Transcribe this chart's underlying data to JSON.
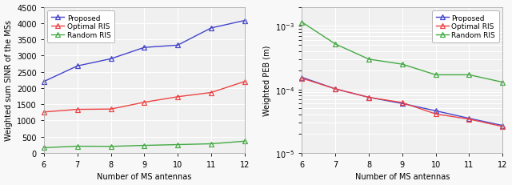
{
  "x": [
    6,
    7,
    8,
    9,
    10,
    11,
    12
  ],
  "left": {
    "proposed": [
      2200,
      2680,
      2900,
      3250,
      3320,
      3850,
      4080
    ],
    "optimal_ris": [
      1260,
      1340,
      1350,
      1560,
      1730,
      1860,
      2200
    ],
    "random_ris": [
      160,
      205,
      200,
      230,
      255,
      280,
      360
    ],
    "ylabel": "Weighted sum SINR of the MSs",
    "ylim": [
      0,
      4500
    ],
    "yticks": [
      0,
      500,
      1000,
      1500,
      2000,
      2500,
      3000,
      3500,
      4000,
      4500
    ]
  },
  "right": {
    "proposed": [
      0.000155,
      0.000102,
      7.5e-05,
      6e-05,
      4.6e-05,
      3.5e-05,
      2.7e-05
    ],
    "optimal_ris": [
      0.00015,
      0.000102,
      7.5e-05,
      6.2e-05,
      4.1e-05,
      3.4e-05,
      2.6e-05
    ],
    "random_ris": [
      0.00115,
      0.00052,
      0.0003,
      0.00025,
      0.00017,
      0.00017,
      0.00013
    ],
    "ylabel": "Weighted PEB (m)",
    "ylim": [
      1e-05,
      0.002
    ]
  },
  "xlabel": "Number of MS antennas",
  "colors": {
    "proposed": "#4444cc",
    "optimal_ris": "#ee4444",
    "random_ris": "#44aa44"
  },
  "legend_labels": [
    "Proposed",
    "Optimal RIS",
    "Random RIS"
  ],
  "marker": "^",
  "markersize": 4,
  "linewidth": 1.0,
  "fontsize_label": 7,
  "fontsize_tick": 7,
  "fontsize_legend": 6.5,
  "axes_facecolor": "#f0f0f0",
  "figure_facecolor": "#f8f8f8",
  "grid_color": "#ffffff",
  "grid_linewidth": 0.8
}
